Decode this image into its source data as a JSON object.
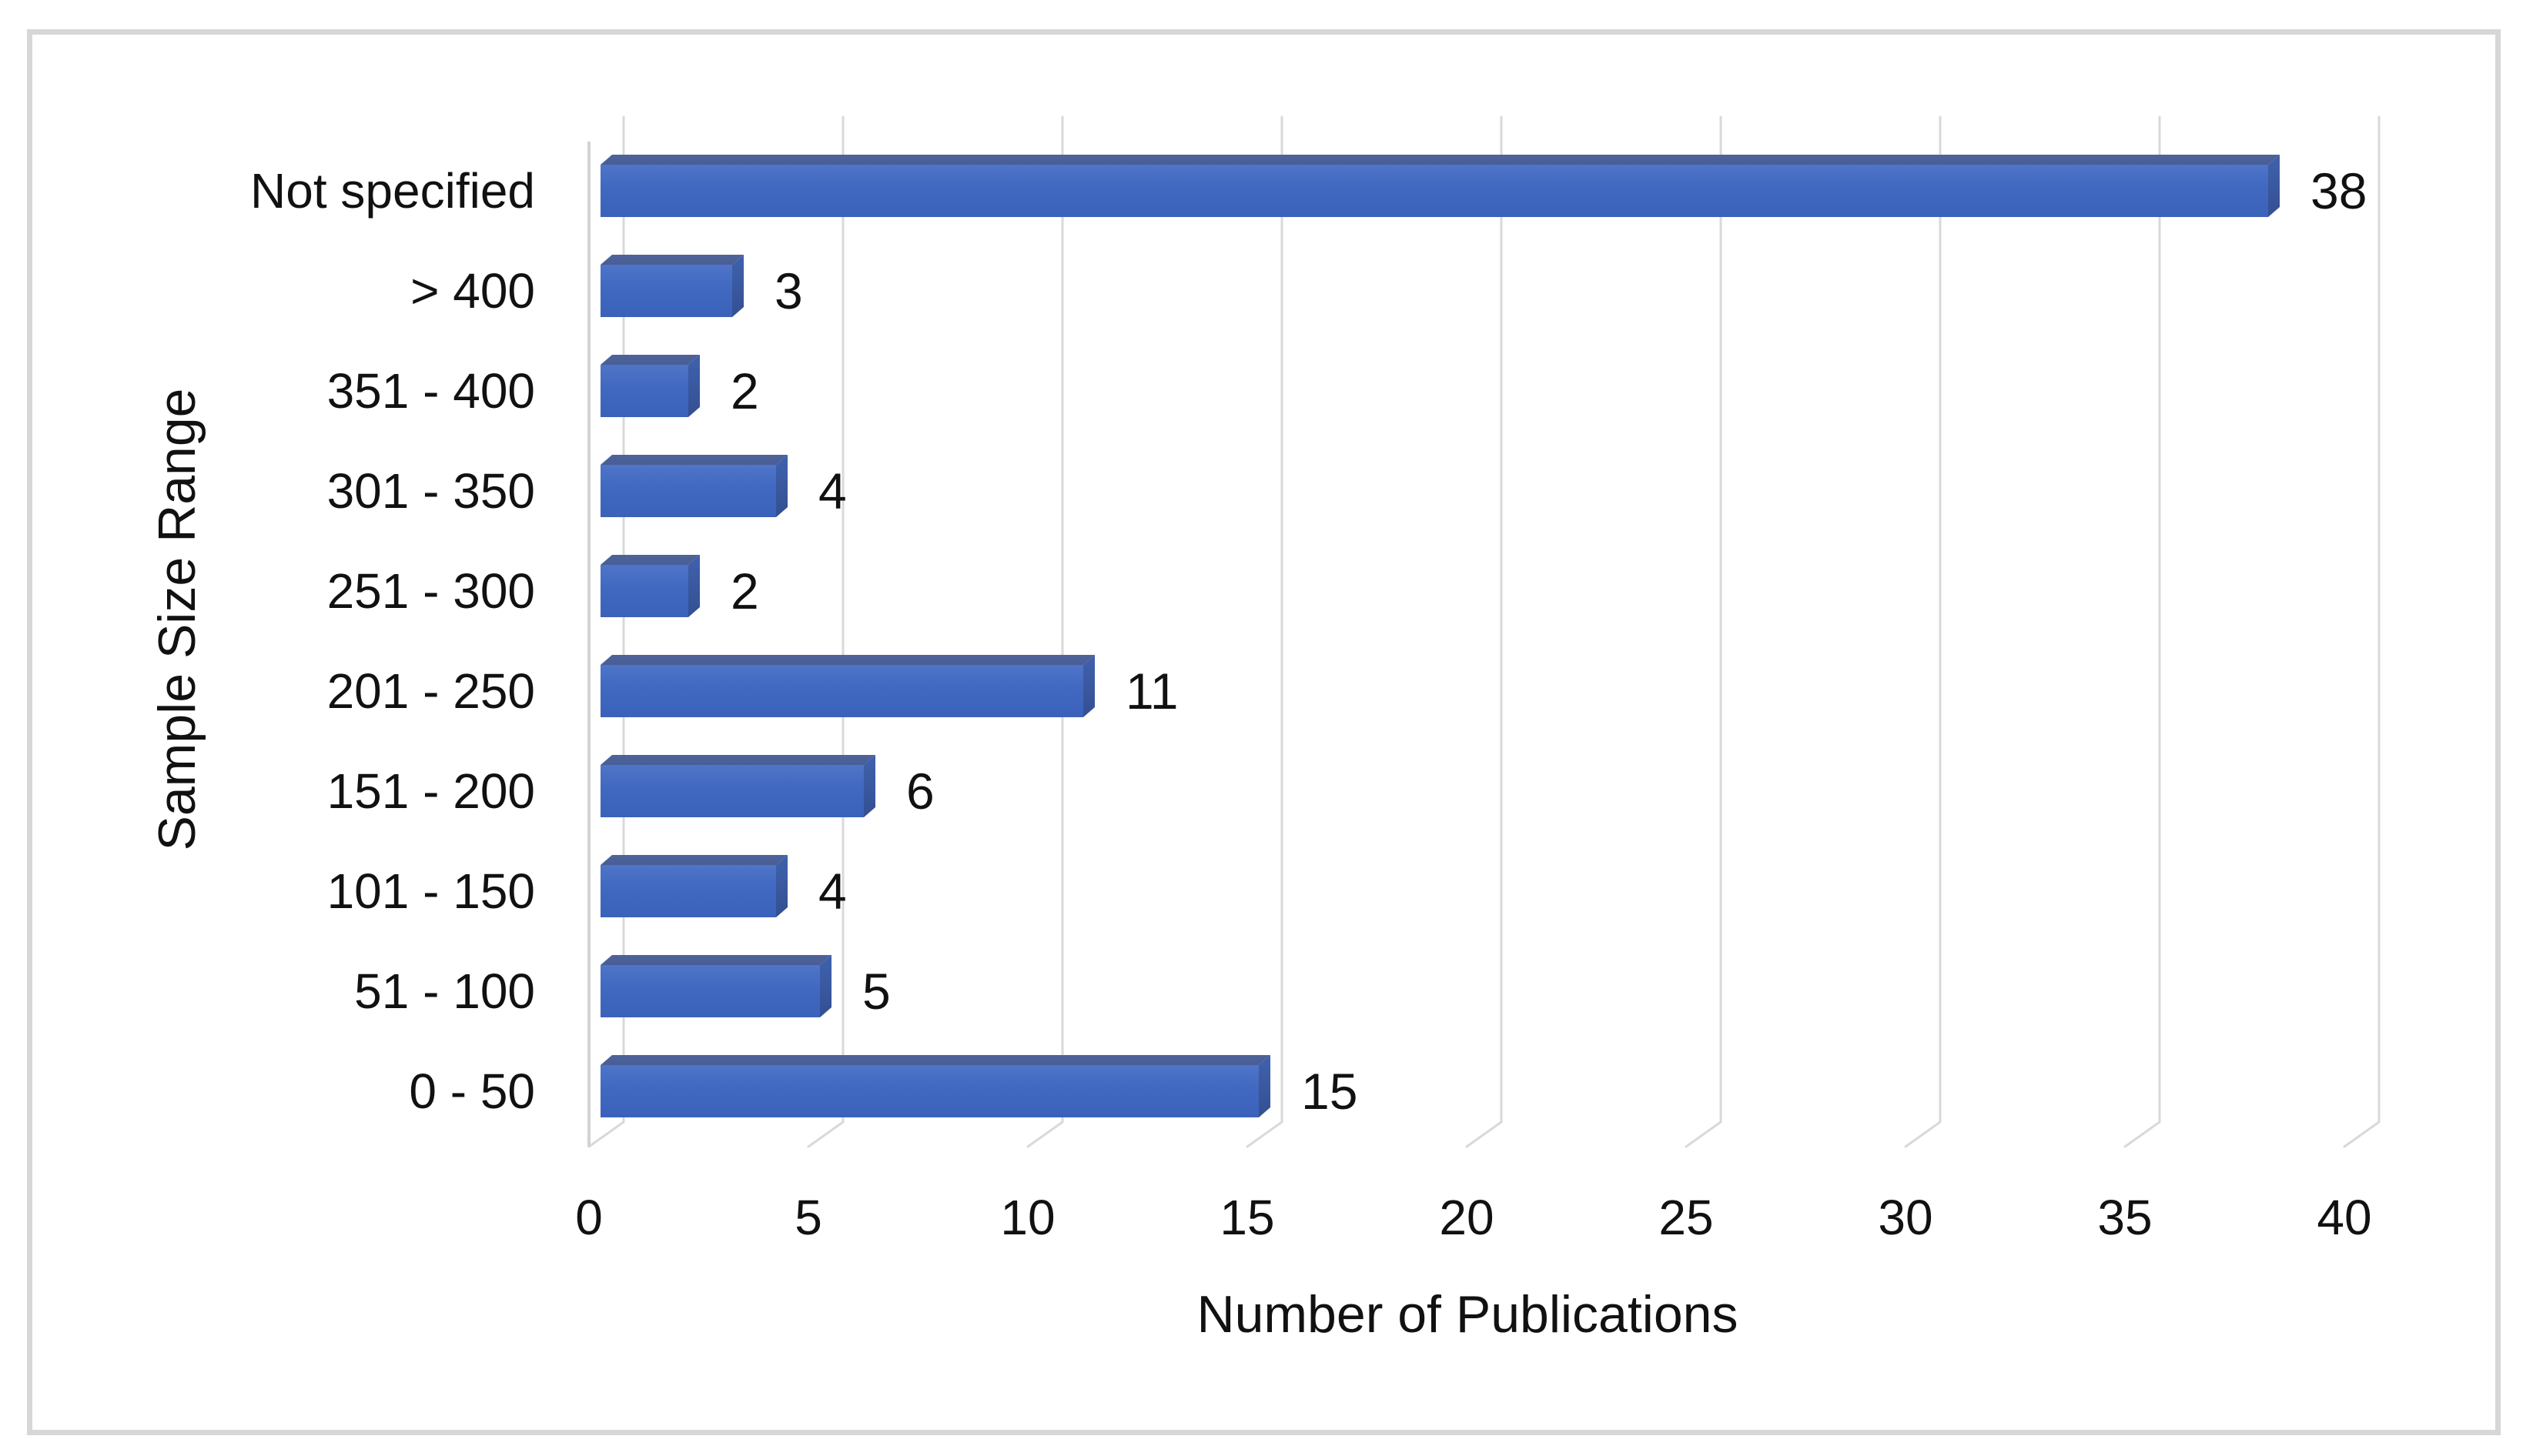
{
  "chart_data": {
    "type": "bar",
    "orientation": "horizontal",
    "style": "3d",
    "title": "",
    "xlabel": "Number of Publications",
    "ylabel": "Sample Size Range",
    "categories": [
      "Not specified",
      "> 400",
      "351 - 400",
      "301 - 350",
      "251 - 300",
      "201 - 250",
      "151 - 200",
      "101 - 150",
      "51 - 100",
      "0 - 50"
    ],
    "values": [
      38,
      3,
      2,
      4,
      2,
      11,
      6,
      4,
      5,
      15
    ],
    "x_ticks": [
      0,
      5,
      10,
      15,
      20,
      25,
      30,
      35,
      40
    ],
    "xlim": [
      0,
      40
    ],
    "grid": true,
    "legend": false,
    "data_labels": true,
    "colors": {
      "bar_front_top": "#4f75c8",
      "bar_front_mid": "#4169c1",
      "bar_front_bottom": "#3a62ba",
      "bar_top_face": "#485e96",
      "bar_side_face": "#344f92",
      "gridline": "#d9d9d9",
      "wall_edge": "#d2d2d2",
      "figure_border": "#d7d7d7",
      "text": "#111111"
    }
  }
}
